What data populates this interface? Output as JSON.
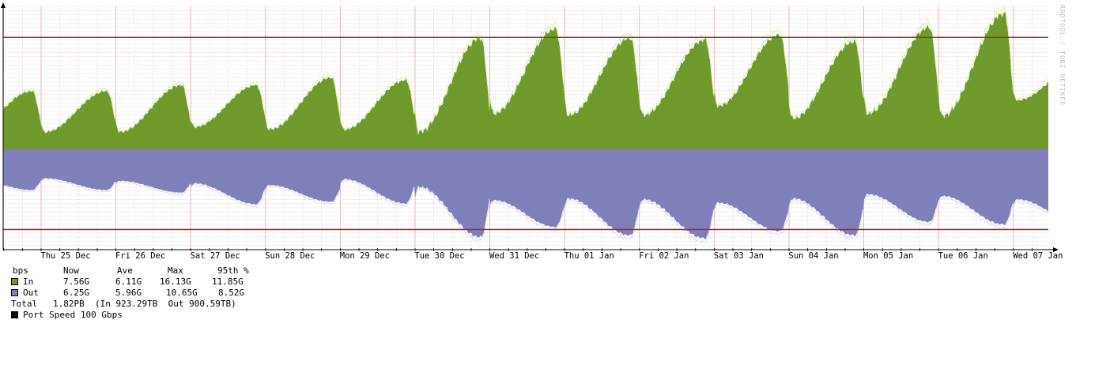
{
  "colors": {
    "in": "#6f9a2b",
    "out": "#7f7fba",
    "port_speed": "#000000",
    "port_line": "#a52a2a",
    "grid_minor": "#e4c6c6",
    "grid_major": "#e9a7a7",
    "peak_in": "#b9f07a",
    "peak_out": "#c8c8ee"
  },
  "watermark": "RRDTOOL / TOBI OETIKER",
  "legend": {
    "header": {
      "label": "bps",
      "now": "Now",
      "ave": "Ave",
      "max": "Max",
      "p95": "95th %"
    },
    "rows": [
      {
        "label": "In",
        "now": "7.56G",
        "ave": "6.11G",
        "max": "16.13G",
        "p95": "11.85G",
        "color_key": "in"
      },
      {
        "label": "Out",
        "now": "6.25G",
        "ave": "5.96G",
        "max": "10.65G",
        "p95": "8.52G",
        "color_key": "out"
      }
    ],
    "total_line": "Total   1.82PB  (In 923.29TB  Out 900.59TB)",
    "port_speed_label": "Port Speed 100 Gbps"
  },
  "chart_data": {
    "type": "area",
    "x": [
      "Thu 25 Dec",
      "Fri 26 Dec",
      "Sat 27 Dec",
      "Sun 28 Dec",
      "Mon 29 Dec",
      "Tue 30 Dec",
      "Wed 31 Dec",
      "Thu 01 Jan",
      "Fri 02 Jan",
      "Sat 03 Jan",
      "Sun 04 Jan",
      "Mon 05 Jan",
      "Tue 06 Jan",
      "Wed 07 Jan"
    ],
    "x_start_days_before_first_label": 0.5,
    "y_unit": "bps",
    "ylim": [
      -12000000000.0,
      17000000000.0
    ],
    "port_speed_reference": [
      13300000000.0,
      -9600000000.0
    ],
    "grid": true,
    "series": [
      {
        "name": "In",
        "direction": "positive",
        "daily": [
          {
            "min": 2000000000.0,
            "max": 6900000000.0
          },
          {
            "min": 2000000000.0,
            "max": 7600000000.0
          },
          {
            "min": 2600000000.0,
            "max": 7600000000.0
          },
          {
            "min": 2300000000.0,
            "max": 8500000000.0
          },
          {
            "min": 2300000000.0,
            "max": 8200000000.0
          },
          {
            "min": 2000000000.0,
            "max": 13200000000.0
          },
          {
            "min": 4200000000.0,
            "max": 14300000000.0
          },
          {
            "min": 4000000000.0,
            "max": 13200000000.0
          },
          {
            "min": 4000000000.0,
            "max": 13000000000.0
          },
          {
            "min": 5100000000.0,
            "max": 13600000000.0
          },
          {
            "min": 3600000000.0,
            "max": 12800000000.0
          },
          {
            "min": 4200000000.0,
            "max": 14500000000.0
          },
          {
            "min": 3900000000.0,
            "max": 16130000000.0
          },
          {
            "min": 5800000000.0,
            "max": 10000000000.0
          }
        ],
        "now": 7560000000.0
      },
      {
        "name": "Out",
        "direction": "negative",
        "daily": [
          {
            "min": 3500000000.0,
            "max": 4900000000.0
          },
          {
            "min": 3800000000.0,
            "max": 5200000000.0
          },
          {
            "min": 4100000000.0,
            "max": 6600000000.0
          },
          {
            "min": 4300000000.0,
            "max": 6300000000.0
          },
          {
            "min": 3600000000.0,
            "max": 6500000000.0
          },
          {
            "min": 4500000000.0,
            "max": 10500000000.0
          },
          {
            "min": 6100000000.0,
            "max": 9300000000.0
          },
          {
            "min": 5900000000.0,
            "max": 10300000000.0
          },
          {
            "min": 6000000000.0,
            "max": 10650000000.0
          },
          {
            "min": 6400000000.0,
            "max": 9800000000.0
          },
          {
            "min": 5900000000.0,
            "max": 10300000000.0
          },
          {
            "min": 5400000000.0,
            "max": 8700000000.0
          },
          {
            "min": 5600000000.0,
            "max": 9000000000.0
          },
          {
            "min": 6000000000.0,
            "max": 8800000000.0
          }
        ],
        "now": 6250000000.0
      }
    ]
  }
}
